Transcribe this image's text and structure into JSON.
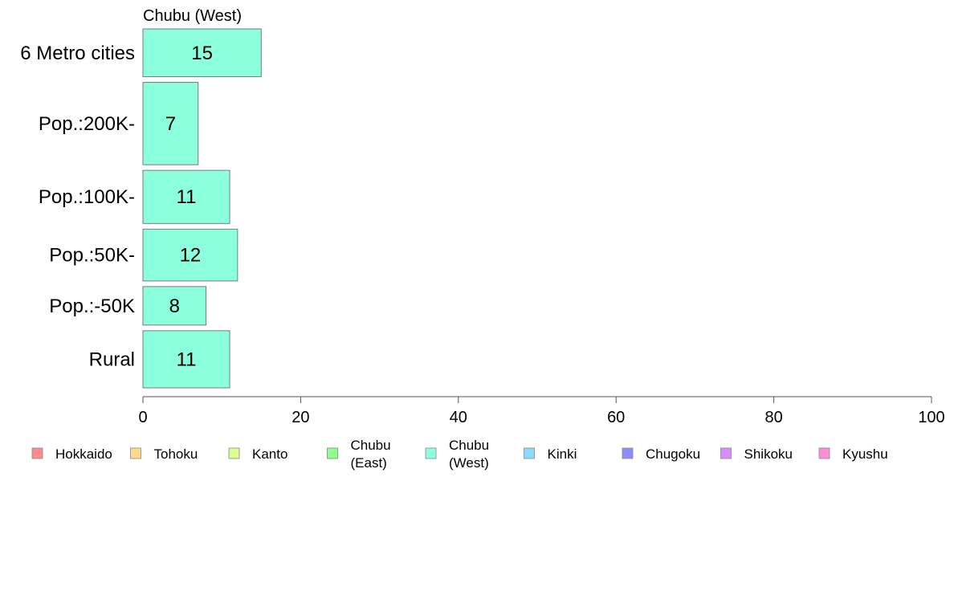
{
  "chart_data": {
    "type": "bar",
    "orientation": "horizontal",
    "title": "Chubu (West)",
    "categories": [
      "6 Metro cities",
      "Pop.:200K-",
      "Pop.:100K-",
      "Pop.:50K-",
      "Pop.:-50K",
      "Rural"
    ],
    "values": [
      15,
      7,
      11,
      12,
      8,
      11
    ],
    "data_labels": [
      "15",
      "7",
      "11",
      "12",
      "8",
      "11"
    ],
    "category_weights": [
      0.18,
      0.31,
      0.2,
      0.195,
      0.145,
      0.215
    ],
    "xlim": [
      0,
      100
    ],
    "xticks": [
      0,
      20,
      40,
      60,
      80,
      100
    ],
    "xtick_labels": [
      "0",
      "20",
      "40",
      "60",
      "80",
      "100"
    ],
    "bar_color": "#8cffdd",
    "bar_edge_color": "#7a7a7a",
    "grid": false,
    "legend_position": "bottom",
    "legend": [
      {
        "label": [
          "Hokkaido"
        ],
        "color": "#ff8c8c"
      },
      {
        "label": [
          "Tohoku"
        ],
        "color": "#ffd98c"
      },
      {
        "label": [
          "Kanto"
        ],
        "color": "#d9ff8c"
      },
      {
        "label": [
          "Chubu",
          "(East)"
        ],
        "color": "#8cff8c"
      },
      {
        "label": [
          "Chubu",
          "(West)"
        ],
        "color": "#8cffdd"
      },
      {
        "label": [
          "Kinki"
        ],
        "color": "#8cd9ff"
      },
      {
        "label": [
          "Chugoku"
        ],
        "color": "#8c8cff"
      },
      {
        "label": [
          "Shikoku"
        ],
        "color": "#d98cff"
      },
      {
        "label": [
          "Kyushu"
        ],
        "color": "#ff8cd9"
      }
    ]
  }
}
